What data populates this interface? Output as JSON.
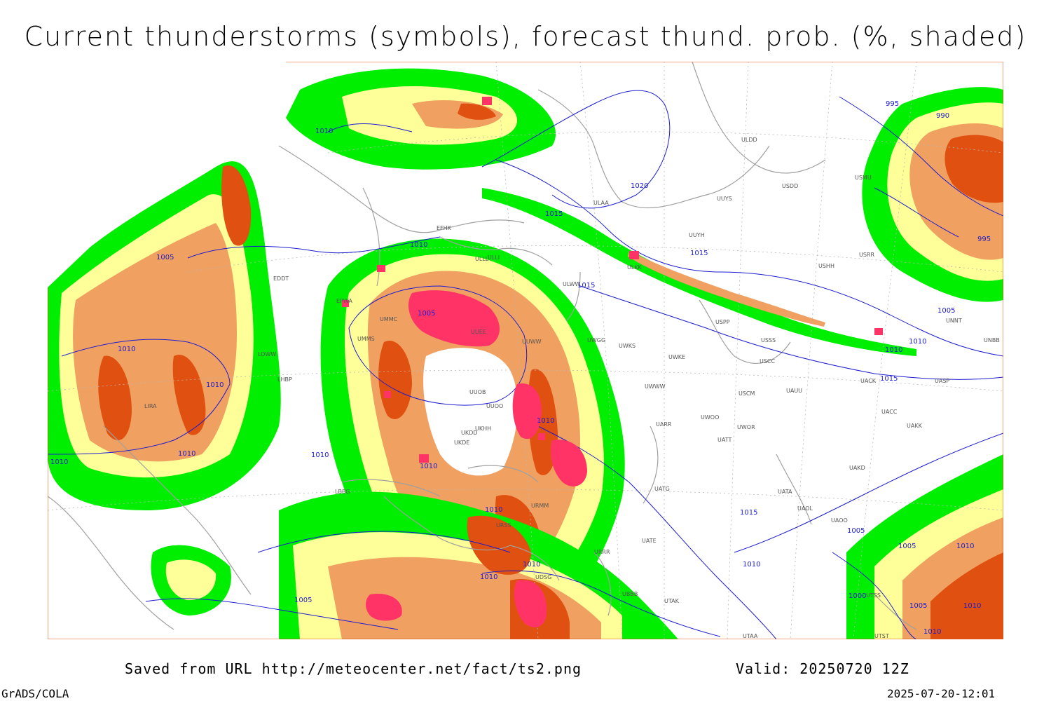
{
  "title": "Current thunderstorms (symbols), forecast thund. prob. (%, shaded)",
  "footer": {
    "saved_from": "Saved from URL http://meteocenter.net/fact/ts2.png",
    "valid": "Valid: 20250720 12Z",
    "software": "GrADS/COLA",
    "generated": "2025-07-20-12:01"
  },
  "colors": {
    "prob_low": "#00ee00",
    "prob_mid": "#ffff99",
    "prob_high": "#f0a060",
    "prob_max": "#e05010",
    "storm_symbol": "#ff3366",
    "isobar": "#1c1cd0",
    "coastline": "#a0a0a0",
    "frame": "#e05010"
  },
  "isobar_labels": [
    "995",
    "990",
    "995",
    "1020",
    "1015",
    "1015",
    "1015",
    "1010",
    "1005",
    "1005",
    "1010",
    "1010",
    "1010",
    "1010",
    "1010",
    "1010",
    "1010",
    "1010",
    "1010",
    "1015",
    "1005",
    "1010",
    "1010",
    "1005",
    "1010",
    "1005",
    "1005",
    "1010",
    "1010",
    "1000",
    "1005",
    "1010",
    "1010",
    "1015",
    "1010"
  ],
  "station_labels": [
    "ULDD",
    "USDD",
    "USMU",
    "ULAA",
    "ULLL",
    "UUYH",
    "USHH",
    "EFHK",
    "ULLI",
    "ULWW",
    "UUYS",
    "ULKK",
    "USRR",
    "UMMS",
    "UMMC",
    "UUEE",
    "UUWW",
    "USPP",
    "USSS",
    "UWGG",
    "UWKS",
    "UWKE",
    "USCC",
    "UACK",
    "UASP",
    "UUOO",
    "UUOB",
    "UKHH",
    "UKDD",
    "UKDE",
    "UWWW",
    "USCM",
    "UAUU",
    "UACC",
    "UAKK",
    "UARR",
    "UWOO",
    "UWOR",
    "UATT",
    "UAKD",
    "UATG",
    "UATA",
    "UAOL",
    "UAOO",
    "UATE",
    "URRR",
    "URSS",
    "URMM",
    "UDSG",
    "UBBB",
    "UTAK",
    "UTAA",
    "UTSS",
    "UTST",
    "EDDT",
    "EPWA",
    "LOWW",
    "LHBP",
    "LIRA",
    "LBBG",
    "UNNT",
    "UNBB"
  ]
}
